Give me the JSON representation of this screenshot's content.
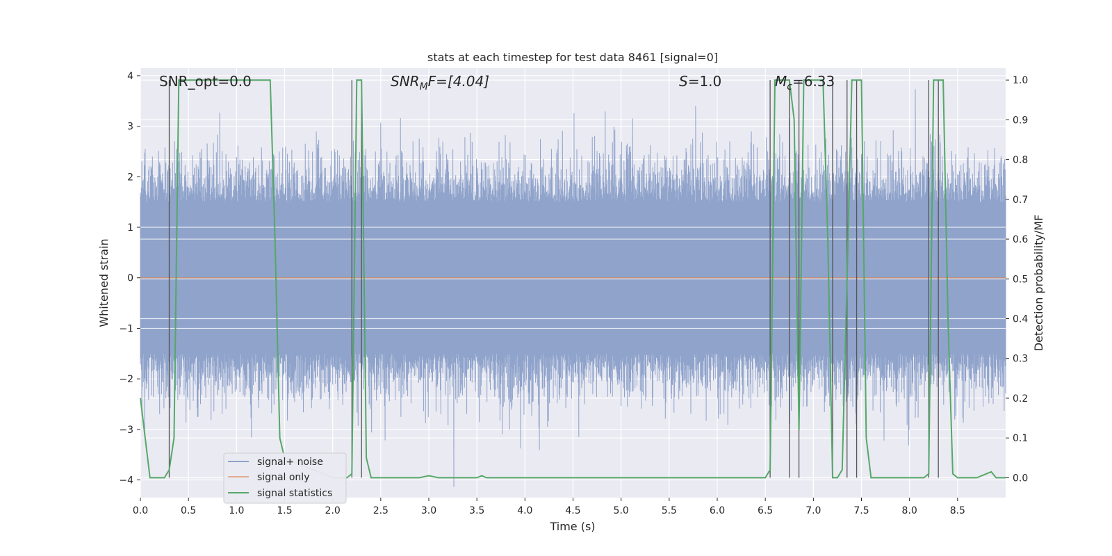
{
  "chart_data": {
    "type": "line",
    "title": "stats at each timestep for test data 8461 [signal=0]",
    "xlabel": "Time (s)",
    "ylabel_left": "Whitened strain",
    "ylabel_right": "Detection probability/MF",
    "xlim": [
      0.0,
      9.0
    ],
    "ylim_left": [
      -4.35,
      4.15
    ],
    "ylim_right": [
      -0.05,
      1.03
    ],
    "x_ticks": [
      0.0,
      0.5,
      1.0,
      1.5,
      2.0,
      2.5,
      3.0,
      3.5,
      4.0,
      4.5,
      5.0,
      5.5,
      6.0,
      6.5,
      7.0,
      7.5,
      8.0,
      8.5
    ],
    "x_tick_labels": [
      "0.0",
      "0.5",
      "1.0",
      "1.5",
      "2.0",
      "2.5",
      "3.0",
      "3.5",
      "4.0",
      "4.5",
      "5.0",
      "5.5",
      "6.0",
      "6.5",
      "7.0",
      "7.5",
      "8.0",
      "8.5"
    ],
    "y_left_ticks": [
      4,
      3,
      2,
      1,
      0,
      -1,
      -2,
      -3,
      -4
    ],
    "y_left_tick_labels": [
      "4",
      "3",
      "2",
      "1",
      "0",
      "−1",
      "−2",
      "−3",
      "−4"
    ],
    "y_right_ticks": [
      1.0,
      0.9,
      0.8,
      0.7,
      0.6,
      0.5,
      0.4,
      0.3,
      0.2,
      0.1,
      0.0
    ],
    "y_right_tick_labels": [
      "1.0",
      "0.9",
      "0.8",
      "0.7",
      "0.6",
      "0.5",
      "0.4",
      "0.3",
      "0.2",
      "0.1",
      "0.0"
    ],
    "annotations": {
      "snr_opt": "SNR_opt=0.0",
      "snr_mf_main": "SNR",
      "snr_mf_sub": "M",
      "snr_mf_tail": "F=[4.04]",
      "s_main": "S",
      "s_tail": "=1.0",
      "mc_main": "M",
      "mc_sub": "c",
      "mc_tail": "=6.33"
    },
    "series": [
      {
        "name": "signal+ noise",
        "color": "#8fa3cb",
        "noise_model": "whitened gaussian strain, ~2 samples/ms, extremes about ±3.6",
        "envelope_abs": 1.5
      },
      {
        "name": "signal only",
        "color": "#dd8452",
        "constant": 0.0
      },
      {
        "name": "signal statistics",
        "color": "#55a868",
        "x": [
          0.0,
          0.05,
          0.1,
          0.25,
          0.3,
          0.35,
          0.4,
          1.35,
          1.4,
          1.45,
          1.5,
          2.0,
          2.05,
          2.1,
          2.15,
          2.2,
          2.25,
          2.3,
          2.35,
          2.4,
          2.45,
          2.5,
          2.9,
          3.0,
          3.1,
          3.5,
          3.55,
          3.6,
          3.65,
          5.0,
          6.5,
          6.55,
          6.6,
          6.65,
          6.7,
          6.75,
          6.8,
          6.85,
          6.9,
          6.95,
          7.0,
          7.05,
          7.1,
          7.15,
          7.2,
          7.25,
          7.3,
          7.35,
          7.4,
          7.45,
          7.5,
          7.55,
          7.6,
          7.65,
          7.7,
          8.15,
          8.2,
          8.25,
          8.3,
          8.35,
          8.4,
          8.45,
          8.5,
          8.7,
          8.8,
          8.85,
          8.9,
          9.0
        ],
        "y": [
          0.2,
          0.1,
          0.0,
          0.0,
          0.02,
          0.1,
          1.0,
          1.0,
          0.6,
          0.1,
          0.05,
          0.0,
          0.0,
          0.0,
          0.0,
          0.01,
          1.0,
          1.0,
          0.05,
          0.0,
          0.0,
          0.0,
          0.0,
          0.005,
          0.0,
          0.0,
          0.005,
          0.0,
          0.0,
          0.0,
          0.0,
          0.02,
          1.0,
          1.0,
          1.0,
          1.0,
          0.9,
          0.12,
          1.0,
          1.0,
          1.0,
          1.0,
          1.0,
          0.6,
          0.0,
          0.0,
          0.02,
          0.5,
          1.0,
          1.0,
          1.0,
          0.1,
          0.0,
          0.0,
          0.0,
          0.0,
          0.01,
          1.0,
          1.0,
          1.0,
          0.4,
          0.01,
          0.0,
          0.0,
          0.01,
          0.015,
          0.0,
          0.0
        ]
      }
    ],
    "detection_markers_x": [
      0.3,
      2.2,
      2.3,
      6.55,
      6.75,
      6.85,
      7.2,
      7.35,
      7.45,
      8.2,
      8.3
    ],
    "detection_marker_range": [
      0.0,
      1.0
    ],
    "legend_position": "lower-left",
    "grid": true
  }
}
